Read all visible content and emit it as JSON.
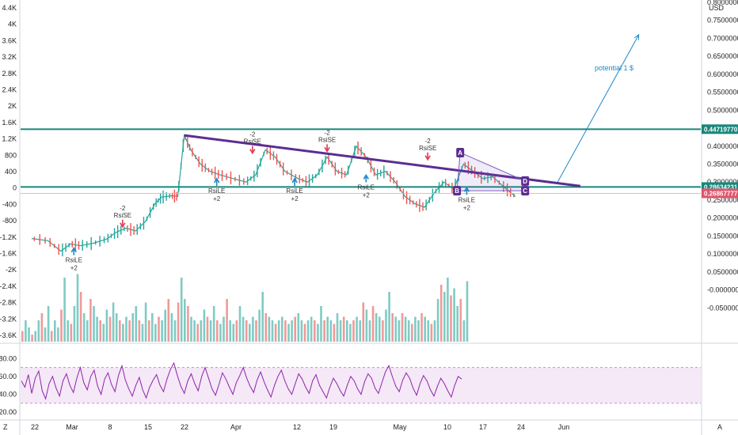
{
  "chart_data": [
    {
      "type": "candlestick",
      "currency": "USD",
      "x_tick_labels": [
        "22",
        "Mar",
        "8",
        "15",
        "22",
        "Apr",
        "12",
        "19",
        "May",
        "10",
        "17",
        "24",
        "Jun"
      ],
      "price_axis": {
        "ylim": [
          -0.1,
          0.8
        ],
        "ticks": [
          "0.80000000",
          "0.75000000",
          "0.70000000",
          "0.65000000",
          "0.60000000",
          "0.55000000",
          "0.50000000",
          "0.45000000",
          "0.40000000",
          "0.35000000",
          "0.30000000",
          "0.25000000",
          "0.20000000",
          "0.15000000",
          "0.10000000",
          "0.05000000",
          "-0.00000000",
          "-0.05000000"
        ],
        "tick_values": [
          0.8,
          0.75,
          0.7,
          0.65,
          0.6,
          0.55,
          0.5,
          0.45,
          0.4,
          0.35,
          0.3,
          0.25,
          0.2,
          0.15,
          0.1,
          0.05,
          0,
          -0.05
        ]
      },
      "left_axis": {
        "ticks": [
          "4.4K",
          "4K",
          "3.6K",
          "3.2K",
          "2.8K",
          "2.4K",
          "2K",
          "1.6K",
          "1.2K",
          "800",
          "400",
          "0",
          "-400",
          "-800",
          "-1.2K",
          "-1.6K",
          "-2K",
          "-2.4K",
          "-2.8K",
          "-3.2K",
          "-3.6K"
        ],
        "tick_values": [
          4400,
          4000,
          3600,
          3200,
          2800,
          2400,
          2000,
          1600,
          1200,
          800,
          400,
          0,
          -400,
          -800,
          -1200,
          -1600,
          -2000,
          -2400,
          -2800,
          -3200,
          -3600
        ]
      },
      "price_path": [
        {
          "x": 0,
          "y": 0.143
        },
        {
          "x": 5,
          "y": 0.137
        },
        {
          "x": 9,
          "y": 0.108
        },
        {
          "x": 12,
          "y": 0.128
        },
        {
          "x": 15,
          "y": 0.123
        },
        {
          "x": 19,
          "y": 0.13
        },
        {
          "x": 23,
          "y": 0.141
        },
        {
          "x": 26,
          "y": 0.16
        },
        {
          "x": 29,
          "y": 0.172
        },
        {
          "x": 32,
          "y": 0.164
        },
        {
          "x": 35,
          "y": 0.19
        },
        {
          "x": 38,
          "y": 0.24
        },
        {
          "x": 40,
          "y": 0.258
        },
        {
          "x": 43,
          "y": 0.262
        },
        {
          "x": 45,
          "y": 0.26
        },
        {
          "x": 47,
          "y": 0.43
        },
        {
          "x": 49,
          "y": 0.39
        },
        {
          "x": 52,
          "y": 0.35
        },
        {
          "x": 55,
          "y": 0.33
        },
        {
          "x": 58,
          "y": 0.32
        },
        {
          "x": 62,
          "y": 0.31
        },
        {
          "x": 66,
          "y": 0.3
        },
        {
          "x": 69,
          "y": 0.32
        },
        {
          "x": 72,
          "y": 0.39
        },
        {
          "x": 75,
          "y": 0.37
        },
        {
          "x": 78,
          "y": 0.33
        },
        {
          "x": 82,
          "y": 0.31
        },
        {
          "x": 85,
          "y": 0.3
        },
        {
          "x": 88,
          "y": 0.32
        },
        {
          "x": 91,
          "y": 0.37
        },
        {
          "x": 94,
          "y": 0.33
        },
        {
          "x": 97,
          "y": 0.32
        },
        {
          "x": 100,
          "y": 0.4
        },
        {
          "x": 103,
          "y": 0.37
        },
        {
          "x": 106,
          "y": 0.32
        },
        {
          "x": 109,
          "y": 0.33
        },
        {
          "x": 112,
          "y": 0.3
        },
        {
          "x": 115,
          "y": 0.26
        },
        {
          "x": 118,
          "y": 0.24
        },
        {
          "x": 121,
          "y": 0.23
        },
        {
          "x": 124,
          "y": 0.27
        },
        {
          "x": 127,
          "y": 0.3
        },
        {
          "x": 130,
          "y": 0.28
        },
        {
          "x": 133,
          "y": 0.35
        },
        {
          "x": 136,
          "y": 0.33
        },
        {
          "x": 139,
          "y": 0.31
        },
        {
          "x": 142,
          "y": 0.315
        },
        {
          "x": 146,
          "y": 0.282
        },
        {
          "x": 149,
          "y": 0.26
        }
      ],
      "levels": [
        {
          "value": 0.4471977,
          "label": "0.44719770",
          "color": "#17877a"
        },
        {
          "value": 0.28634231,
          "label": "0.28634231",
          "color": "#17877a"
        },
        {
          "value": 0.26867777,
          "label": "0.26867777",
          "color": "#e0556c"
        }
      ],
      "trendline": {
        "x": [
          47,
          169
        ],
        "y": [
          0.43,
          0.289
        ],
        "color": "#5c2d91"
      },
      "projection": {
        "x": [
          162,
          187
        ],
        "y": [
          0.3,
          0.71
        ],
        "label": "potential 1 $",
        "color": "#1e88c8"
      },
      "pattern_points": [
        {
          "label": "A",
          "x": 132,
          "y": 0.382
        },
        {
          "label": "B",
          "x": 131,
          "y": 0.276
        },
        {
          "label": "C",
          "x": 152,
          "y": 0.276
        },
        {
          "label": "D",
          "x": 152,
          "y": 0.303
        }
      ],
      "signals": [
        {
          "type": "up",
          "label": "RsiLE",
          "value": "+2",
          "x": 13,
          "y": 0.112
        },
        {
          "type": "down",
          "label": "RsiSE",
          "value": "-2",
          "x": 28,
          "y": 0.18
        },
        {
          "type": "up",
          "label": "RsiLE",
          "value": "+2",
          "x": 57,
          "y": 0.305
        },
        {
          "type": "down",
          "label": "RsiSE",
          "value": "-2",
          "x": 68,
          "y": 0.385
        },
        {
          "type": "up",
          "label": "RsiLE",
          "value": "+2",
          "x": 81,
          "y": 0.305
        },
        {
          "type": "down",
          "label": "RsiSE",
          "value": "-2",
          "x": 91,
          "y": 0.39
        },
        {
          "type": "up",
          "label": "RsiLE",
          "value": "+2",
          "x": 103,
          "y": 0.315
        },
        {
          "type": "down",
          "label": "RsiSE",
          "value": "-2",
          "x": 122,
          "y": 0.367
        },
        {
          "type": "up",
          "label": "RsiLE",
          "value": "+2",
          "x": 134,
          "y": 0.28
        }
      ],
      "volume_profile": [
        0.15,
        0.3,
        0.2,
        0.1,
        0.15,
        0.3,
        0.4,
        0.2,
        0.5,
        0.15,
        0.3,
        0.2,
        0.45,
        0.9,
        0.3,
        0.25,
        0.5,
        0.95,
        0.7,
        0.4,
        0.3,
        0.6,
        0.5,
        0.35,
        0.3,
        0.25,
        0.45,
        0.35,
        0.55,
        0.4,
        0.3,
        0.25,
        0.35,
        0.3,
        0.4,
        0.5,
        0.3,
        0.25,
        0.55,
        0.3,
        0.4,
        0.25,
        0.35,
        0.3,
        0.45,
        0.6,
        0.4,
        0.3,
        0.55,
        0.9,
        0.6,
        0.5,
        0.35,
        0.3,
        0.25,
        0.3,
        0.45,
        0.35,
        0.3,
        0.5,
        0.3,
        0.25,
        0.35,
        0.6,
        0.3,
        0.25,
        0.3,
        0.5,
        0.35,
        0.3,
        0.25,
        0.35,
        0.3,
        0.45,
        0.7,
        0.4,
        0.35,
        0.3,
        0.25,
        0.3,
        0.35,
        0.3,
        0.25,
        0.3,
        0.35,
        0.4,
        0.3,
        0.25,
        0.3,
        0.35,
        0.3,
        0.25,
        0.5,
        0.3,
        0.35,
        0.3,
        0.25,
        0.4,
        0.3,
        0.35,
        0.3,
        0.25,
        0.3,
        0.35,
        0.3,
        0.55,
        0.45,
        0.3,
        0.5,
        0.4,
        0.35,
        0.3,
        0.45,
        0.7,
        0.4,
        0.35,
        0.3,
        0.4,
        0.35,
        0.3,
        0.25,
        0.35,
        0.3,
        0.4,
        0.35,
        0.3,
        0.25,
        0.3,
        0.6,
        0.8,
        0.7,
        0.9,
        0.65,
        0.75,
        0.5,
        0.6,
        0.3,
        0.85
      ]
    },
    {
      "type": "line",
      "indicator": "rsi",
      "ticks": [
        "80.00",
        "60.00",
        "40.00",
        "20.00"
      ],
      "tick_values": [
        80,
        60,
        40,
        20
      ],
      "ylim": [
        14,
        90
      ],
      "band": [
        30,
        70
      ],
      "color": "#8e24aa",
      "values": [
        55,
        48,
        62,
        41,
        58,
        66,
        44,
        35,
        52,
        60,
        47,
        38,
        55,
        63,
        50,
        42,
        58,
        70,
        53,
        45,
        60,
        67,
        49,
        40,
        57,
        64,
        51,
        43,
        61,
        72,
        56,
        46,
        38,
        50,
        59,
        45,
        36,
        48,
        56,
        62,
        50,
        43,
        57,
        68,
        75,
        61,
        49,
        41,
        55,
        63,
        52,
        44,
        60,
        70,
        58,
        46,
        39,
        51,
        64,
        57,
        48,
        40,
        53,
        61,
        70,
        58,
        49,
        42,
        56,
        65,
        54,
        45,
        37,
        50,
        60,
        67,
        55,
        46,
        40,
        52,
        63,
        57,
        48,
        41,
        55,
        62,
        50,
        43,
        36,
        48,
        58,
        52,
        44,
        38,
        50,
        60,
        55,
        46,
        40,
        54,
        63,
        58,
        47,
        41,
        53,
        65,
        72,
        60,
        49,
        43,
        56,
        64,
        58,
        47,
        39,
        52,
        61,
        55,
        45,
        38,
        49,
        58,
        52,
        44,
        37,
        50,
        60,
        57
      ]
    }
  ]
}
